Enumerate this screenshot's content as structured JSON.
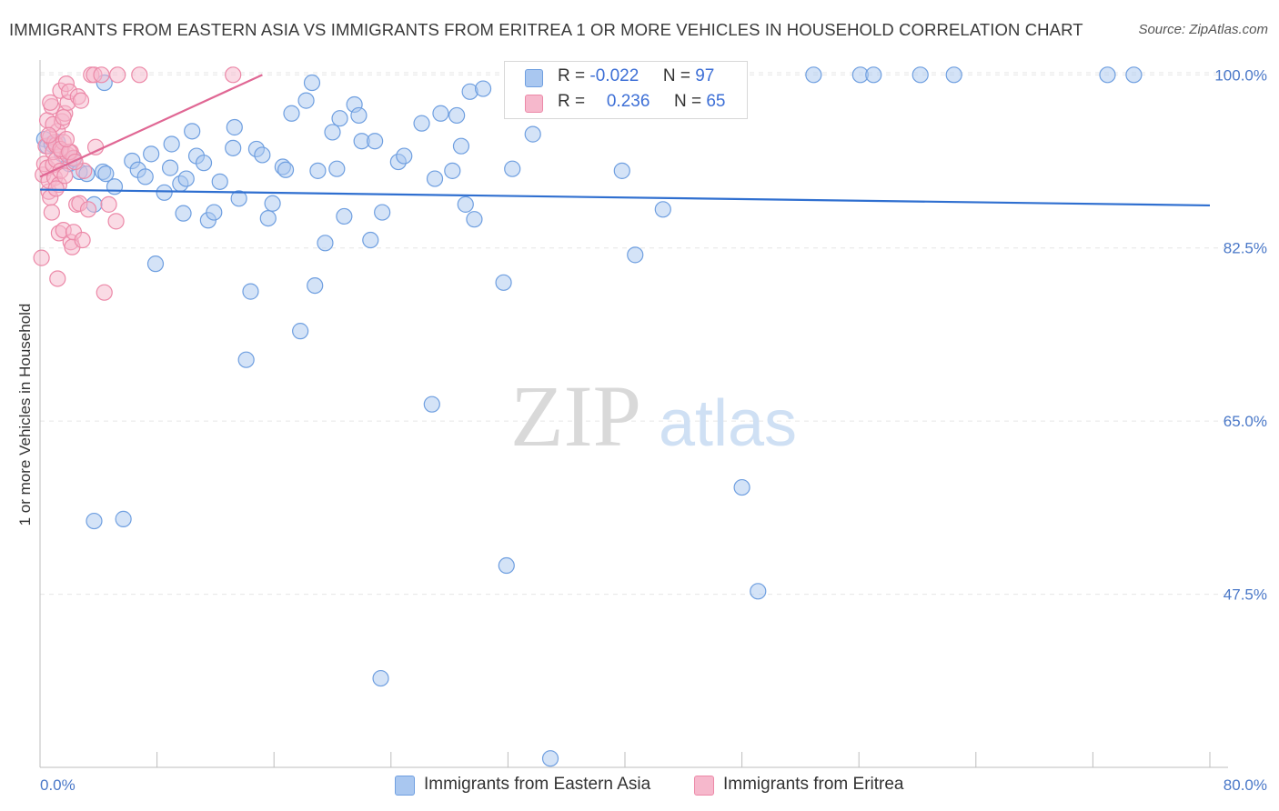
{
  "header": {
    "title": "IMMIGRANTS FROM EASTERN ASIA VS IMMIGRANTS FROM ERITREA 1 OR MORE VEHICLES IN HOUSEHOLD CORRELATION CHART",
    "source": "Source: ZipAtlas.com"
  },
  "watermark": {
    "zip": "ZIP",
    "atlas": "atlas"
  },
  "legend": {
    "r_label": "R =",
    "n_label": "N =",
    "series": [
      {
        "name": "Immigrants from Eastern Asia",
        "r": "-0.022",
        "n": "97",
        "color": "#a9c7f0",
        "stroke": "#6f9fe0",
        "line": "#2f6fd0"
      },
      {
        "name": "Immigrants from Eritrea",
        "r": "0.236",
        "n": "65",
        "color": "#f6b8cc",
        "stroke": "#ec89a8",
        "line": "#e06794"
      }
    ]
  },
  "chart_data": {
    "type": "scatter",
    "title": "IMMIGRANTS FROM EASTERN ASIA VS IMMIGRANTS FROM ERITREA 1 OR MORE VEHICLES IN HOUSEHOLD CORRELATION CHART",
    "xlabel": "",
    "ylabel": "1 or more Vehicles in Household",
    "xlim": [
      0,
      80
    ],
    "ylim": [
      30,
      101.5
    ],
    "x_tick_labels": [
      "0.0%",
      "80.0%"
    ],
    "y_ticks": [
      47.5,
      65.0,
      82.5,
      100.0
    ],
    "y_tick_labels": [
      "47.5%",
      "65.0%",
      "82.5%",
      "100.0%"
    ],
    "grid": true,
    "legend_position": "top-center",
    "series": [
      {
        "name": "Immigrants from Eastern Asia",
        "r": -0.022,
        "n": 97,
        "trend": {
          "x": [
            0,
            80
          ],
          "y": [
            88.4,
            86.8
          ]
        },
        "points": [
          [
            0.3,
            93.5
          ],
          [
            0.5,
            92.8
          ],
          [
            0.8,
            93.0
          ],
          [
            1.2,
            93.2
          ],
          [
            1.5,
            92.0
          ],
          [
            2.0,
            91.0
          ],
          [
            2.3,
            91.5
          ],
          [
            2.7,
            90.2
          ],
          [
            3.2,
            90.0
          ],
          [
            3.7,
            86.9
          ],
          [
            4.3,
            90.2
          ],
          [
            4.5,
            90.0
          ],
          [
            5.1,
            88.7
          ],
          [
            6.3,
            91.3
          ],
          [
            6.7,
            90.4
          ],
          [
            7.2,
            89.7
          ],
          [
            7.6,
            92.0
          ],
          [
            7.9,
            80.9
          ],
          [
            8.5,
            88.1
          ],
          [
            8.9,
            90.6
          ],
          [
            9.0,
            93.0
          ],
          [
            9.6,
            89.0
          ],
          [
            10.0,
            89.5
          ],
          [
            10.4,
            94.3
          ],
          [
            10.7,
            91.8
          ],
          [
            11.2,
            91.1
          ],
          [
            11.5,
            85.3
          ],
          [
            11.9,
            86.1
          ],
          [
            12.3,
            89.2
          ],
          [
            13.2,
            92.6
          ],
          [
            13.3,
            94.7
          ],
          [
            13.6,
            87.5
          ],
          [
            14.1,
            71.2
          ],
          [
            14.4,
            78.1
          ],
          [
            14.8,
            92.5
          ],
          [
            15.2,
            91.9
          ],
          [
            15.6,
            85.5
          ],
          [
            15.9,
            87.0
          ],
          [
            16.6,
            90.7
          ],
          [
            16.8,
            90.4
          ],
          [
            17.2,
            96.1
          ],
          [
            17.8,
            74.1
          ],
          [
            18.2,
            97.4
          ],
          [
            18.6,
            99.2
          ],
          [
            18.8,
            78.7
          ],
          [
            19.0,
            90.3
          ],
          [
            19.5,
            83.0
          ],
          [
            20.0,
            94.2
          ],
          [
            20.3,
            90.5
          ],
          [
            20.5,
            95.6
          ],
          [
            20.8,
            85.7
          ],
          [
            21.5,
            97.0
          ],
          [
            21.8,
            95.9
          ],
          [
            22.0,
            93.3
          ],
          [
            22.6,
            83.3
          ],
          [
            22.9,
            93.3
          ],
          [
            23.4,
            86.1
          ],
          [
            24.5,
            91.2
          ],
          [
            24.9,
            91.8
          ],
          [
            26.1,
            95.1
          ],
          [
            26.8,
            66.7
          ],
          [
            27.0,
            89.5
          ],
          [
            27.4,
            96.1
          ],
          [
            28.2,
            90.3
          ],
          [
            28.5,
            95.9
          ],
          [
            28.8,
            92.8
          ],
          [
            29.1,
            86.9
          ],
          [
            29.4,
            98.3
          ],
          [
            29.7,
            85.4
          ],
          [
            30.3,
            98.6
          ],
          [
            31.7,
            79.0
          ],
          [
            31.9,
            50.4
          ],
          [
            32.3,
            90.5
          ],
          [
            33.1,
            96.6
          ],
          [
            33.7,
            94.0
          ],
          [
            34.9,
            30.9
          ],
          [
            36.8,
            100.0
          ],
          [
            38.2,
            100.0
          ],
          [
            39.1,
            100.0
          ],
          [
            39.8,
            90.3
          ],
          [
            40.7,
            81.8
          ],
          [
            42.6,
            86.4
          ],
          [
            43.8,
            100.0
          ],
          [
            48.0,
            58.3
          ],
          [
            49.1,
            47.8
          ],
          [
            52.9,
            100.0
          ],
          [
            56.1,
            100.0
          ],
          [
            57.0,
            100.0
          ],
          [
            60.2,
            100.0
          ],
          [
            62.5,
            100.0
          ],
          [
            73.0,
            100.0
          ],
          [
            74.8,
            100.0
          ],
          [
            5.7,
            55.1
          ],
          [
            3.7,
            54.9
          ],
          [
            4.4,
            99.2
          ],
          [
            9.8,
            86.0
          ],
          [
            23.3,
            39.0
          ]
        ]
      },
      {
        "name": "Immigrants from Eritrea",
        "r": 0.236,
        "n": 65,
        "trend": {
          "x": [
            0,
            15.2
          ],
          "y": [
            89.7,
            100.0
          ]
        },
        "points": [
          [
            0.1,
            81.5
          ],
          [
            0.2,
            89.9
          ],
          [
            0.3,
            91.0
          ],
          [
            0.4,
            92.8
          ],
          [
            0.5,
            95.4
          ],
          [
            0.5,
            90.6
          ],
          [
            0.6,
            88.2
          ],
          [
            0.6,
            89.3
          ],
          [
            0.7,
            87.6
          ],
          [
            0.7,
            93.7
          ],
          [
            0.8,
            96.8
          ],
          [
            0.8,
            86.1
          ],
          [
            0.9,
            90.9
          ],
          [
            0.9,
            92.2
          ],
          [
            1.0,
            89.6
          ],
          [
            1.0,
            93.2
          ],
          [
            1.1,
            92.9
          ],
          [
            1.1,
            91.4
          ],
          [
            1.2,
            94.3
          ],
          [
            1.2,
            79.4
          ],
          [
            1.3,
            84.0
          ],
          [
            1.3,
            88.9
          ],
          [
            1.4,
            98.4
          ],
          [
            1.4,
            90.3
          ],
          [
            1.5,
            92.3
          ],
          [
            1.5,
            95.3
          ],
          [
            1.6,
            93.2
          ],
          [
            1.6,
            84.3
          ],
          [
            1.7,
            96.1
          ],
          [
            1.7,
            89.8
          ],
          [
            1.8,
            99.1
          ],
          [
            1.9,
            97.2
          ],
          [
            1.9,
            91.9
          ],
          [
            2.0,
            98.3
          ],
          [
            2.1,
            83.1
          ],
          [
            2.1,
            92.2
          ],
          [
            2.2,
            82.6
          ],
          [
            2.3,
            84.1
          ],
          [
            2.3,
            91.6
          ],
          [
            2.5,
            86.9
          ],
          [
            2.6,
            97.8
          ],
          [
            2.7,
            87.0
          ],
          [
            2.8,
            97.4
          ],
          [
            2.9,
            83.3
          ],
          [
            3.0,
            90.3
          ],
          [
            3.3,
            86.4
          ],
          [
            3.5,
            100.0
          ],
          [
            3.7,
            100.0
          ],
          [
            3.8,
            92.7
          ],
          [
            4.2,
            100.0
          ],
          [
            4.4,
            78.0
          ],
          [
            4.7,
            86.9
          ],
          [
            5.2,
            85.2
          ],
          [
            5.3,
            100.0
          ],
          [
            6.8,
            100.0
          ],
          [
            13.2,
            100.0
          ],
          [
            0.9,
            95.0
          ],
          [
            1.4,
            92.5
          ],
          [
            1.6,
            95.7
          ],
          [
            2.0,
            92.2
          ],
          [
            0.7,
            97.2
          ],
          [
            2.4,
            91.2
          ],
          [
            1.1,
            88.5
          ],
          [
            0.6,
            93.9
          ],
          [
            1.8,
            93.5
          ]
        ]
      }
    ]
  }
}
